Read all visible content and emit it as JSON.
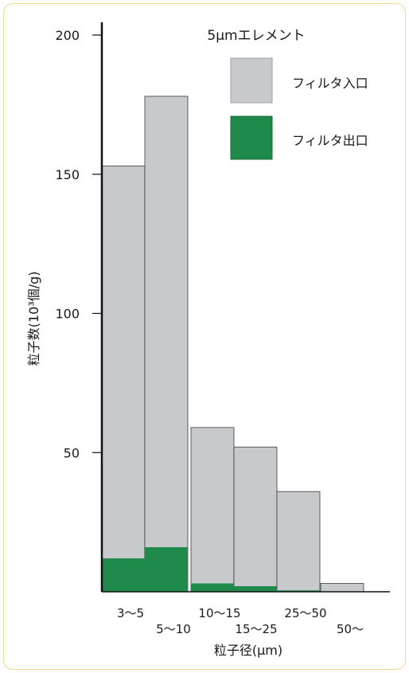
{
  "chart_data": {
    "type": "bar",
    "title": "5μmエレメント",
    "ylabel": "粒子数(10³個/g)",
    "xlabel": "粒子径(μm)",
    "ylim": [
      0,
      200
    ],
    "yticks": [
      "200",
      "150",
      "100",
      "50"
    ],
    "categories": [
      "3～5",
      "5～10",
      "10～15",
      "15～25",
      "25～50",
      "50～"
    ],
    "series": [
      {
        "name": "フィルタ入口",
        "color": "#c8c9cd",
        "values": [
          153,
          178,
          59,
          52,
          36,
          3
        ]
      },
      {
        "name": "フィルタ出口",
        "color": "#1f8a4c",
        "values": [
          12,
          16,
          3,
          2,
          0.5,
          0
        ]
      }
    ],
    "legend_position": "top-right"
  },
  "colors": {
    "frame_border": "#f3d98a",
    "axis": "#111111"
  }
}
